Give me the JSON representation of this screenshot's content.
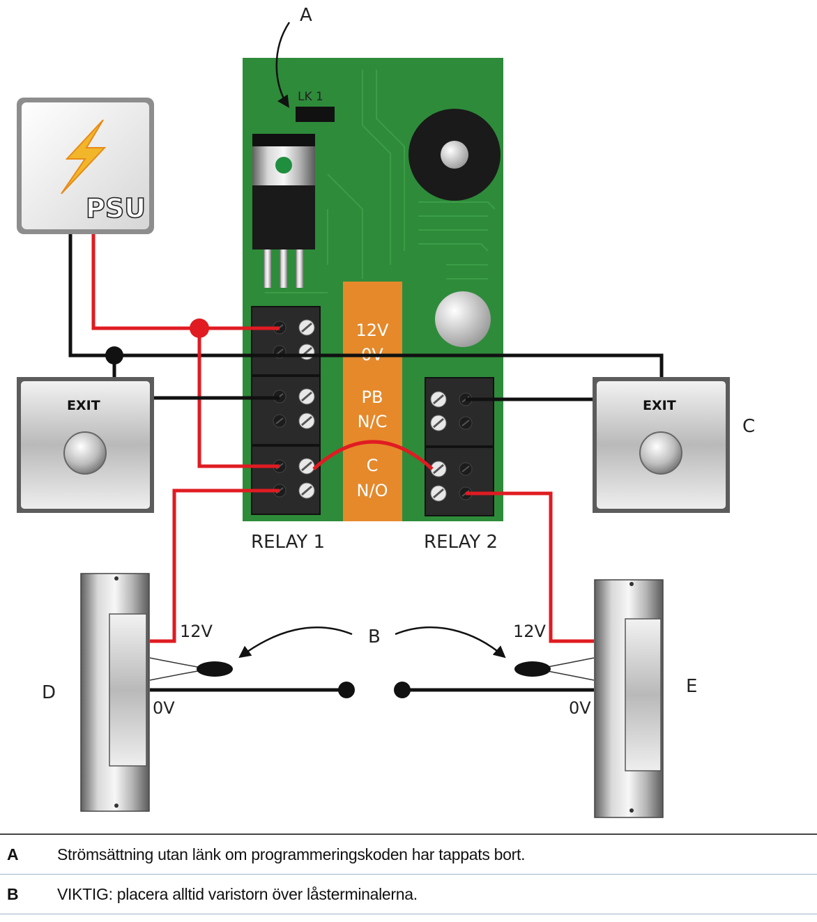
{
  "diagram": {
    "callout_a": "A",
    "callout_b": "B",
    "callout_c": "C",
    "callout_d": "D",
    "callout_e": "E",
    "link_label": "LK 1",
    "psu_label": "PSU",
    "exit_left_label": "EXIT",
    "exit_right_label": "EXIT",
    "terminal_labels": [
      "12V",
      "0V",
      "PB",
      "N/C",
      "C",
      "N/O"
    ],
    "relay1_label": "RELAY 1",
    "relay2_label": "RELAY 2",
    "lock_left_12v": "12V",
    "lock_left_0v": "0V",
    "lock_right_12v": "12V",
    "lock_right_0v": "0V"
  },
  "legend": [
    {
      "key": "A",
      "text": "Strömsättning utan länk om programmeringskoden har tappats bort."
    },
    {
      "key": "B",
      "text": "VIKTIG: placera alltid varistorn över låsterminalerna."
    }
  ]
}
